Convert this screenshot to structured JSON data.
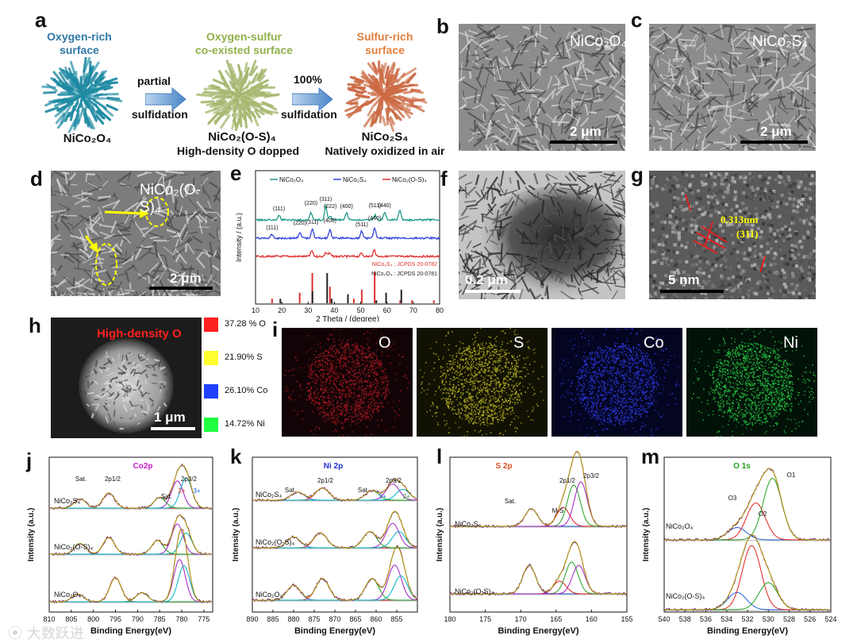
{
  "panels": {
    "a": {
      "label": "a",
      "stages": [
        {
          "title_lines": [
            "Oxygen-rich",
            "surface"
          ],
          "title_color": "#2e77a6",
          "formula": "NiCo₂O₄",
          "caption": "",
          "sphere_color": "#2a9cb4"
        },
        {
          "title_lines": [
            "Oxygen-sulfur",
            "co-existed surface"
          ],
          "title_color": "#8fb04a",
          "formula": "NiCo₂(O-S)₄",
          "caption": "High-density O dopped",
          "sphere_color": "#b9c58a"
        },
        {
          "title_lines": [
            "Sulfur-rich",
            "surface"
          ],
          "title_color": "#e0803c",
          "formula": "NiCo₂S₄",
          "caption": "Natively oxidized in air",
          "sphere_color": "#d7774d"
        }
      ],
      "arrows": [
        {
          "top": "partial",
          "bottom": "sulfidation"
        },
        {
          "top": "100%",
          "bottom": "sulfidation"
        }
      ]
    },
    "b": {
      "label": "b",
      "title": "NiCo₂O₄",
      "scalebar": "2 μm"
    },
    "c": {
      "label": "c",
      "title": "NiCo₂S₄",
      "scalebar": "2 μm"
    },
    "d": {
      "label": "d",
      "title": "NiCo₂(O-S)₄",
      "scalebar": "2 μm"
    },
    "f": {
      "label": "f",
      "scalebar": "0.2 μm"
    },
    "g": {
      "label": "g",
      "spacing": "0.313nm",
      "plane": "(311)",
      "scalebar": "5 nm"
    },
    "h": {
      "label": "h",
      "title": "High-density O",
      "scalebar": "1 μm",
      "composition": [
        {
          "label": "37.28 % O",
          "color": "#ff2020"
        },
        {
          "label": "21.90% S",
          "color": "#ffff30"
        },
        {
          "label": "26.10% Co",
          "color": "#2040ff"
        },
        {
          "label": "14.72% Ni",
          "color": "#20ff40"
        }
      ]
    },
    "i": {
      "label": "i",
      "maps": [
        {
          "element": "O",
          "color": "#7a1015"
        },
        {
          "element": "S",
          "color": "#8a8418"
        },
        {
          "element": "Co",
          "color": "#1a26a8"
        },
        {
          "element": "Ni",
          "color": "#1c9a34"
        }
      ]
    }
  },
  "chart_data": [
    {
      "panel": "e",
      "type": "line",
      "xlabel": "2 Theta / (degree)",
      "ylabel": "Intensity / (a.u.)",
      "xlim": [
        10,
        80
      ],
      "xticks": [
        10,
        20,
        30,
        40,
        50,
        60,
        70,
        80
      ],
      "legend": [
        "NiCo₂O₄",
        "NiCo₂S₄",
        "NiCo₂(O-S)₄"
      ],
      "series": [
        {
          "name": "NiCo₂O₄",
          "color": "#1f9a8a",
          "peaks": [
            {
              "x": 18.9,
              "h": 6
            },
            {
              "x": 31.1,
              "h": 9
            },
            {
              "x": 36.7,
              "h": 18
            },
            {
              "x": 38.4,
              "h": 5
            },
            {
              "x": 44.6,
              "h": 9
            },
            {
              "x": 55.4,
              "h": 6
            },
            {
              "x": 59.1,
              "h": 10
            },
            {
              "x": 64.9,
              "h": 12
            }
          ],
          "peak_labels": [
            "(111)",
            "(220)",
            "(311)",
            "(222)",
            "(400)",
            "(511)",
            "(440)"
          ]
        },
        {
          "name": "NiCo₂S₄",
          "color": "#3344dd",
          "peaks": [
            {
              "x": 16.3,
              "h": 5
            },
            {
              "x": 26.8,
              "h": 7
            },
            {
              "x": 31.6,
              "h": 12
            },
            {
              "x": 38.3,
              "h": 10
            },
            {
              "x": 50.4,
              "h": 9
            },
            {
              "x": 55.3,
              "h": 13
            }
          ],
          "peak_labels": [
            "(111)",
            "(220)",
            "(311)",
            "(400)",
            "(511)",
            "(440)"
          ]
        },
        {
          "name": "NiCo₂(O-S)₄",
          "color": "#e03030",
          "peaks": [
            {
              "x": 31.4,
              "h": 7
            },
            {
              "x": 36.8,
              "h": 5
            },
            {
              "x": 38.2,
              "h": 4
            },
            {
              "x": 50.3,
              "h": 4
            },
            {
              "x": 55.2,
              "h": 8
            }
          ]
        }
      ],
      "references": [
        {
          "name": "NiCo₂S₄ : JCPDS 20-0782",
          "color": "#e03030",
          "lines": [
            {
              "x": 16.3,
              "h": 0.15
            },
            {
              "x": 26.8,
              "h": 0.35
            },
            {
              "x": 31.6,
              "h": 1.0
            },
            {
              "x": 38.3,
              "h": 0.55
            },
            {
              "x": 47.4,
              "h": 0.15
            },
            {
              "x": 50.4,
              "h": 0.45
            },
            {
              "x": 55.3,
              "h": 1.05
            },
            {
              "x": 65.0,
              "h": 0.1
            },
            {
              "x": 69.5,
              "h": 0.1
            },
            {
              "x": 77.8,
              "h": 0.1
            }
          ]
        },
        {
          "name": "NiCo₂O₄ : JCPDS 20-0781",
          "color": "#222222",
          "lines": [
            {
              "x": 18.9,
              "h": 0.15
            },
            {
              "x": 31.1,
              "h": 0.4
            },
            {
              "x": 36.7,
              "h": 1.0
            },
            {
              "x": 38.4,
              "h": 0.15
            },
            {
              "x": 44.6,
              "h": 0.3
            },
            {
              "x": 55.4,
              "h": 0.1
            },
            {
              "x": 59.1,
              "h": 0.35
            },
            {
              "x": 64.9,
              "h": 0.45
            }
          ]
        }
      ]
    },
    {
      "panel": "j",
      "type": "line",
      "title": "Co2p",
      "title_color": "#d020d0",
      "xlabel": "Binding Energy(eV)",
      "ylabel": "Intensity (a.u.)",
      "xlim": [
        810,
        773
      ],
      "xticks": [
        810,
        805,
        800,
        795,
        790,
        785,
        780,
        775
      ],
      "labels": [
        "Sat.",
        "2p1/2",
        "2p3/2",
        "Sat.",
        "2+",
        "3+"
      ],
      "series": [
        {
          "name": "NiCo₂S₄",
          "peaks": [
            {
              "x": 803,
              "h": 0.3
            },
            {
              "x": 796.5,
              "h": 0.5
            },
            {
              "x": 785,
              "h": 0.35
            },
            {
              "x": 781,
              "h": 0.9
            },
            {
              "x": 779,
              "h": 1.0
            }
          ]
        },
        {
          "name": "NiCo₂(O-S)₄",
          "peaks": [
            {
              "x": 803,
              "h": 0.35
            },
            {
              "x": 796.5,
              "h": 0.55
            },
            {
              "x": 785.5,
              "h": 0.45
            },
            {
              "x": 781,
              "h": 1.0
            },
            {
              "x": 779,
              "h": 0.7
            }
          ]
        },
        {
          "name": "NiCo₂O₄",
          "peaks": [
            {
              "x": 803.5,
              "h": 0.25
            },
            {
              "x": 795,
              "h": 0.8
            },
            {
              "x": 789,
              "h": 0.3
            },
            {
              "x": 780.5,
              "h": 1.4
            },
            {
              "x": 779.5,
              "h": 1.2
            }
          ]
        }
      ]
    },
    {
      "panel": "k",
      "type": "line",
      "title": "Ni 2p",
      "title_color": "#2030d0",
      "xlabel": "Binding Energy(eV)",
      "ylabel": "Intensity (a.u.)",
      "xlim": [
        890,
        850
      ],
      "xticks": [
        890,
        885,
        880,
        875,
        870,
        865,
        860,
        855
      ],
      "labels": [
        "Sat.",
        "2p1/2",
        "Sat.",
        "2p3/2",
        "3+",
        "2+"
      ],
      "series": [
        {
          "name": "NiCo₂S₄",
          "peaks": [
            {
              "x": 879,
              "h": 0.3
            },
            {
              "x": 873,
              "h": 0.45
            },
            {
              "x": 861,
              "h": 0.35
            },
            {
              "x": 856,
              "h": 0.6
            },
            {
              "x": 853.5,
              "h": 0.4
            }
          ]
        },
        {
          "name": "NiCo₂(O-S)₄",
          "peaks": [
            {
              "x": 880,
              "h": 0.4
            },
            {
              "x": 873.5,
              "h": 0.55
            },
            {
              "x": 861.5,
              "h": 0.6
            },
            {
              "x": 856,
              "h": 0.9
            },
            {
              "x": 854.5,
              "h": 0.6
            }
          ]
        },
        {
          "name": "NiCo₂O₄",
          "peaks": [
            {
              "x": 880,
              "h": 0.55
            },
            {
              "x": 873,
              "h": 0.8
            },
            {
              "x": 861,
              "h": 0.8
            },
            {
              "x": 855.5,
              "h": 1.3
            },
            {
              "x": 854,
              "h": 0.9
            }
          ]
        }
      ]
    },
    {
      "panel": "l",
      "type": "line",
      "title": "S 2p",
      "title_color": "#e05020",
      "xlabel": "Binding Energy(eV)",
      "ylabel": "Intensity (a.u.)",
      "xlim": [
        180,
        155
      ],
      "xticks": [
        180,
        175,
        170,
        165,
        160,
        155
      ],
      "labels": [
        "Sat.",
        "M-S",
        "2p1/2",
        "2p3/2"
      ],
      "series": [
        {
          "name": "NiCo₂S₄",
          "peaks": [
            {
              "x": 168.5,
              "h": 0.55
            },
            {
              "x": 164,
              "h": 0.6
            },
            {
              "x": 162.5,
              "h": 1.3
            },
            {
              "x": 161.5,
              "h": 1.4
            }
          ]
        },
        {
          "name": "NiCo₂(O-S)₄",
          "peaks": [
            {
              "x": 168.8,
              "h": 0.9
            },
            {
              "x": 164.5,
              "h": 0.4
            },
            {
              "x": 162.8,
              "h": 1.0
            },
            {
              "x": 161.8,
              "h": 0.9
            }
          ]
        }
      ]
    },
    {
      "panel": "m",
      "type": "line",
      "title": "O 1s",
      "title_color": "#20a020",
      "xlabel": "Binding Energy(eV)",
      "ylabel": "Intensity (a.u.)",
      "xlim": [
        540,
        524
      ],
      "xticks": [
        540,
        538,
        536,
        534,
        532,
        530,
        528,
        526,
        524
      ],
      "labels": [
        "O1",
        "O2",
        "O3"
      ],
      "series": [
        {
          "name": "NiCo₂O₄",
          "peaks": [
            {
              "x": 533,
              "h": 0.25
            },
            {
              "x": 531.2,
              "h": 0.75
            },
            {
              "x": 529.6,
              "h": 1.25
            }
          ]
        },
        {
          "name": "NiCo₂(O-S)₄",
          "peaks": [
            {
              "x": 533,
              "h": 0.35
            },
            {
              "x": 531.6,
              "h": 1.3
            },
            {
              "x": 530,
              "h": 0.55
            }
          ]
        }
      ]
    }
  ],
  "watermark": "大数跃进"
}
